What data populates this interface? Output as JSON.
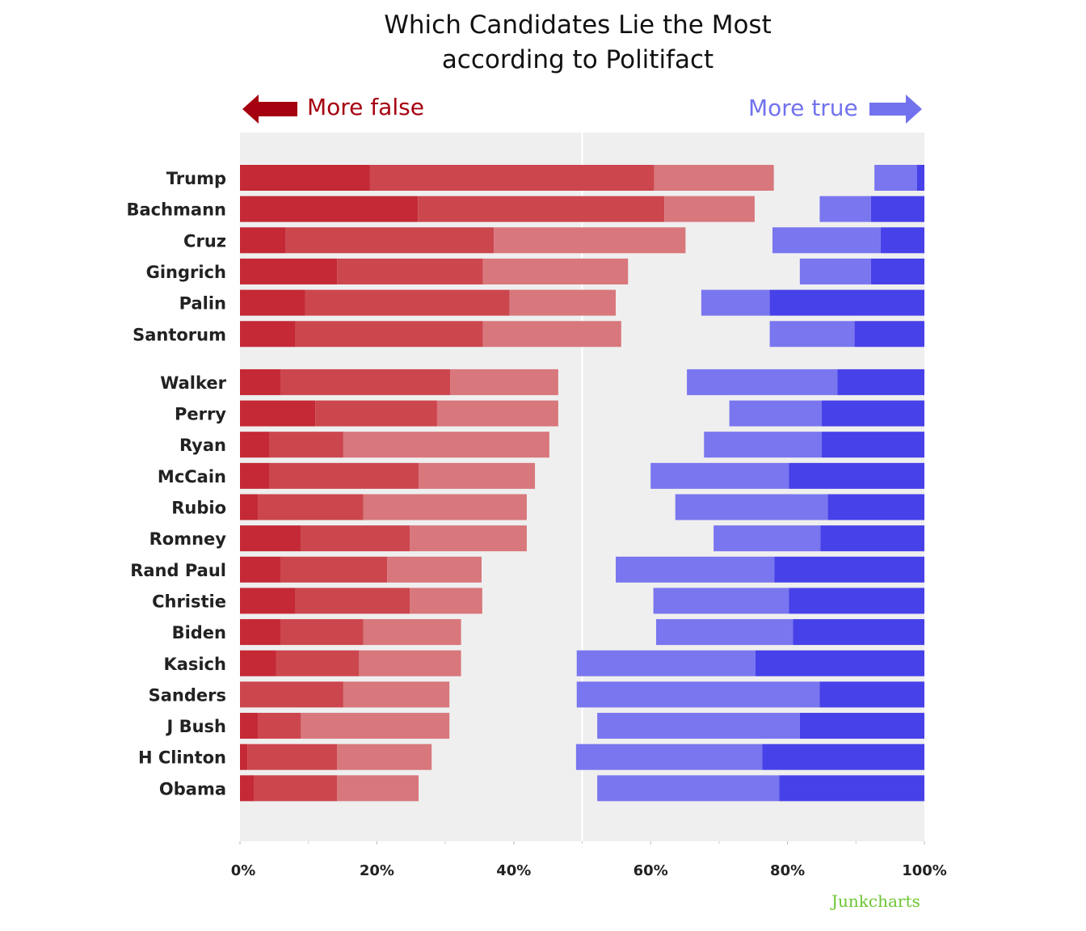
{
  "title_lines": [
    "Which Candidates Lie the Most",
    "according to Politifact"
  ],
  "legend": {
    "false_label": "More false",
    "true_label": "More true",
    "false_color": "#a5000f",
    "true_color": "#7272ee"
  },
  "credit": "Junkcharts",
  "credit_color": "#6bc531",
  "chart_data": {
    "type": "bar",
    "orientation": "horizontal",
    "stacked": true,
    "title": "Which Candidates Lie the Most according to Politifact",
    "xlim": [
      0,
      100
    ],
    "x_ticks": [
      "0%",
      "20%",
      "40%",
      "60%",
      "80%",
      "100%"
    ],
    "grid": false,
    "midline_percent": 50,
    "groups": [
      [
        "Trump",
        "Bachmann",
        "Cruz",
        "Gingrich",
        "Palin",
        "Santorum"
      ],
      [
        "Walker",
        "Perry",
        "Ryan",
        "McCain",
        "Rubio",
        "Romney",
        "Rand Paul",
        "Christie",
        "Biden",
        "Kasich",
        "Sanders",
        "J Bush",
        "H Clinton",
        "Obama"
      ]
    ],
    "segment_colors": {
      "false_dark": "#c42935",
      "false_mid": "#cc464e",
      "false_light": "#d8777c",
      "true_light": "#7a76ef",
      "true_dark": "#4741e9"
    },
    "rows": [
      {
        "name": "Trump",
        "false": [
          19,
          41.5,
          17.5
        ],
        "true": [
          6.2,
          1.1
        ]
      },
      {
        "name": "Bachmann",
        "false": [
          26,
          36,
          13.2
        ],
        "true": [
          7.5,
          7.8
        ]
      },
      {
        "name": "Cruz",
        "false": [
          6.7,
          30.4,
          28
        ],
        "true": [
          15.8,
          6.4
        ]
      },
      {
        "name": "Gingrich",
        "false": [
          14.2,
          21.3,
          21.2
        ],
        "true": [
          10.4,
          7.8
        ]
      },
      {
        "name": "Palin",
        "false": [
          9.5,
          29.9,
          15.5
        ],
        "true": [
          10,
          22.6
        ]
      },
      {
        "name": "Santorum",
        "false": [
          8.1,
          27.4,
          20.2
        ],
        "true": [
          12.4,
          10.2
        ]
      },
      {
        "name": "Walker",
        "false": [
          5.9,
          24.8,
          15.8
        ],
        "true": [
          22,
          12.7
        ]
      },
      {
        "name": "Perry",
        "false": [
          11,
          17.8,
          17.7
        ],
        "true": [
          13.5,
          15
        ]
      },
      {
        "name": "Ryan",
        "false": [
          4.3,
          10.8,
          30.1
        ],
        "true": [
          17.2,
          15
        ]
      },
      {
        "name": "McCain",
        "false": [
          4.3,
          21.8,
          17
        ],
        "true": [
          20.2,
          19.8
        ]
      },
      {
        "name": "Rubio",
        "false": [
          2.6,
          15.4,
          23.9
        ],
        "true": [
          22.3,
          14.1
        ]
      },
      {
        "name": "Romney",
        "false": [
          8.9,
          15.9,
          17.1
        ],
        "true": [
          15.6,
          15.2
        ]
      },
      {
        "name": "Rand Paul",
        "false": [
          5.9,
          15.6,
          13.8
        ],
        "true": [
          23.2,
          21.9
        ]
      },
      {
        "name": "Christie",
        "false": [
          8.1,
          16.7,
          10.6
        ],
        "true": [
          19.8,
          19.8
        ]
      },
      {
        "name": "Biden",
        "false": [
          5.9,
          12.1,
          14.3
        ],
        "true": [
          20,
          19.2
        ]
      },
      {
        "name": "Kasich",
        "false": [
          5.3,
          12.1,
          14.9
        ],
        "true": [
          26.1,
          24.7
        ]
      },
      {
        "name": "Sanders",
        "false": [
          0,
          15.1,
          15.5
        ],
        "true": [
          35.5,
          15.3
        ]
      },
      {
        "name": "J Bush",
        "false": [
          2.6,
          6.3,
          21.7
        ],
        "true": [
          29.6,
          18.2
        ]
      },
      {
        "name": "H Clinton",
        "false": [
          1.1,
          13.1,
          13.8
        ],
        "true": [
          27.2,
          23.7
        ]
      },
      {
        "name": "Obama",
        "false": [
          2.1,
          12.1,
          11.9
        ],
        "true": [
          26.6,
          21.2
        ]
      }
    ]
  }
}
